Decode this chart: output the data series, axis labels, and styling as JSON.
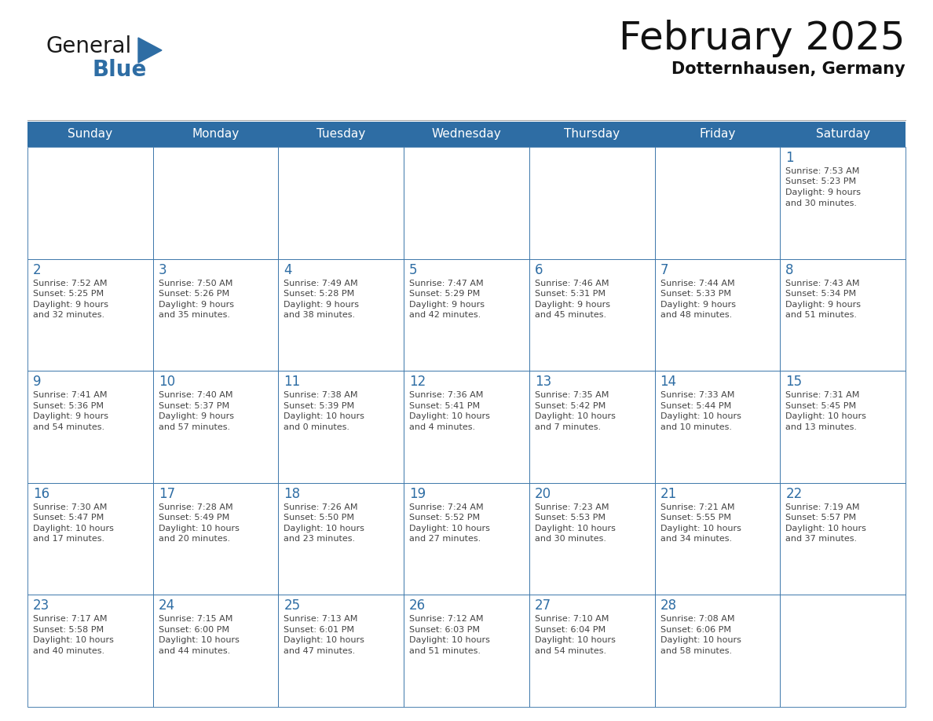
{
  "title": "February 2025",
  "subtitle": "Dotternhausen, Germany",
  "header_bg": "#2e6da4",
  "header_text_color": "#ffffff",
  "cell_bg": "#ffffff",
  "cell_border_color": "#2e6da4",
  "day_number_color": "#2e6da4",
  "cell_text_color": "#444444",
  "background_color": "#ffffff",
  "days_of_week": [
    "Sunday",
    "Monday",
    "Tuesday",
    "Wednesday",
    "Thursday",
    "Friday",
    "Saturday"
  ],
  "logo_general_color": "#1a1a1a",
  "logo_blue_color": "#2e6da4",
  "title_fontsize": 36,
  "subtitle_fontsize": 15,
  "header_fontsize": 11,
  "day_num_fontsize": 12,
  "cell_text_fontsize": 8,
  "calendar_data": [
    [
      null,
      null,
      null,
      null,
      null,
      null,
      {
        "day": "1",
        "sunrise": "7:53 AM",
        "sunset": "5:23 PM",
        "daylight_line1": "9 hours",
        "daylight_line2": "and 30 minutes."
      }
    ],
    [
      {
        "day": "2",
        "sunrise": "7:52 AM",
        "sunset": "5:25 PM",
        "daylight_line1": "9 hours",
        "daylight_line2": "and 32 minutes."
      },
      {
        "day": "3",
        "sunrise": "7:50 AM",
        "sunset": "5:26 PM",
        "daylight_line1": "9 hours",
        "daylight_line2": "and 35 minutes."
      },
      {
        "day": "4",
        "sunrise": "7:49 AM",
        "sunset": "5:28 PM",
        "daylight_line1": "9 hours",
        "daylight_line2": "and 38 minutes."
      },
      {
        "day": "5",
        "sunrise": "7:47 AM",
        "sunset": "5:29 PM",
        "daylight_line1": "9 hours",
        "daylight_line2": "and 42 minutes."
      },
      {
        "day": "6",
        "sunrise": "7:46 AM",
        "sunset": "5:31 PM",
        "daylight_line1": "9 hours",
        "daylight_line2": "and 45 minutes."
      },
      {
        "day": "7",
        "sunrise": "7:44 AM",
        "sunset": "5:33 PM",
        "daylight_line1": "9 hours",
        "daylight_line2": "and 48 minutes."
      },
      {
        "day": "8",
        "sunrise": "7:43 AM",
        "sunset": "5:34 PM",
        "daylight_line1": "9 hours",
        "daylight_line2": "and 51 minutes."
      }
    ],
    [
      {
        "day": "9",
        "sunrise": "7:41 AM",
        "sunset": "5:36 PM",
        "daylight_line1": "9 hours",
        "daylight_line2": "and 54 minutes."
      },
      {
        "day": "10",
        "sunrise": "7:40 AM",
        "sunset": "5:37 PM",
        "daylight_line1": "9 hours",
        "daylight_line2": "and 57 minutes."
      },
      {
        "day": "11",
        "sunrise": "7:38 AM",
        "sunset": "5:39 PM",
        "daylight_line1": "10 hours",
        "daylight_line2": "and 0 minutes."
      },
      {
        "day": "12",
        "sunrise": "7:36 AM",
        "sunset": "5:41 PM",
        "daylight_line1": "10 hours",
        "daylight_line2": "and 4 minutes."
      },
      {
        "day": "13",
        "sunrise": "7:35 AM",
        "sunset": "5:42 PM",
        "daylight_line1": "10 hours",
        "daylight_line2": "and 7 minutes."
      },
      {
        "day": "14",
        "sunrise": "7:33 AM",
        "sunset": "5:44 PM",
        "daylight_line1": "10 hours",
        "daylight_line2": "and 10 minutes."
      },
      {
        "day": "15",
        "sunrise": "7:31 AM",
        "sunset": "5:45 PM",
        "daylight_line1": "10 hours",
        "daylight_line2": "and 13 minutes."
      }
    ],
    [
      {
        "day": "16",
        "sunrise": "7:30 AM",
        "sunset": "5:47 PM",
        "daylight_line1": "10 hours",
        "daylight_line2": "and 17 minutes."
      },
      {
        "day": "17",
        "sunrise": "7:28 AM",
        "sunset": "5:49 PM",
        "daylight_line1": "10 hours",
        "daylight_line2": "and 20 minutes."
      },
      {
        "day": "18",
        "sunrise": "7:26 AM",
        "sunset": "5:50 PM",
        "daylight_line1": "10 hours",
        "daylight_line2": "and 23 minutes."
      },
      {
        "day": "19",
        "sunrise": "7:24 AM",
        "sunset": "5:52 PM",
        "daylight_line1": "10 hours",
        "daylight_line2": "and 27 minutes."
      },
      {
        "day": "20",
        "sunrise": "7:23 AM",
        "sunset": "5:53 PM",
        "daylight_line1": "10 hours",
        "daylight_line2": "and 30 minutes."
      },
      {
        "day": "21",
        "sunrise": "7:21 AM",
        "sunset": "5:55 PM",
        "daylight_line1": "10 hours",
        "daylight_line2": "and 34 minutes."
      },
      {
        "day": "22",
        "sunrise": "7:19 AM",
        "sunset": "5:57 PM",
        "daylight_line1": "10 hours",
        "daylight_line2": "and 37 minutes."
      }
    ],
    [
      {
        "day": "23",
        "sunrise": "7:17 AM",
        "sunset": "5:58 PM",
        "daylight_line1": "10 hours",
        "daylight_line2": "and 40 minutes."
      },
      {
        "day": "24",
        "sunrise": "7:15 AM",
        "sunset": "6:00 PM",
        "daylight_line1": "10 hours",
        "daylight_line2": "and 44 minutes."
      },
      {
        "day": "25",
        "sunrise": "7:13 AM",
        "sunset": "6:01 PM",
        "daylight_line1": "10 hours",
        "daylight_line2": "and 47 minutes."
      },
      {
        "day": "26",
        "sunrise": "7:12 AM",
        "sunset": "6:03 PM",
        "daylight_line1": "10 hours",
        "daylight_line2": "and 51 minutes."
      },
      {
        "day": "27",
        "sunrise": "7:10 AM",
        "sunset": "6:04 PM",
        "daylight_line1": "10 hours",
        "daylight_line2": "and 54 minutes."
      },
      {
        "day": "28",
        "sunrise": "7:08 AM",
        "sunset": "6:06 PM",
        "daylight_line1": "10 hours",
        "daylight_line2": "and 58 minutes."
      },
      null
    ]
  ]
}
